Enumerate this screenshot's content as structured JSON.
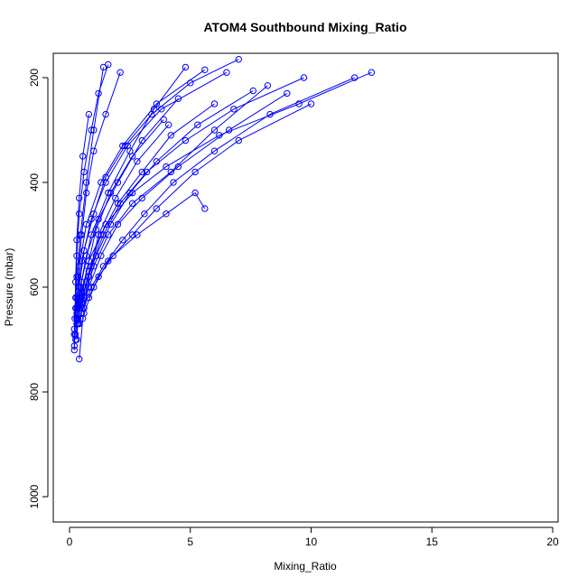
{
  "chart_data": {
    "type": "line",
    "title": "ATOM4 Southbound Mixing_Ratio",
    "xlabel": "Mixing_Ratio",
    "ylabel": "Pressure (mbar)",
    "xlim": [
      0,
      20
    ],
    "ylim": [
      1000,
      160
    ],
    "y_reversed": true,
    "grid": false,
    "legend": "none",
    "marker": "open-circle",
    "color": "#0000ff",
    "x_ticks": [
      0,
      5,
      10,
      15,
      20
    ],
    "y_ticks": [
      200,
      400,
      600,
      800,
      1000
    ],
    "x_tick_labels": [
      "0",
      "5",
      "10",
      "15",
      "20"
    ],
    "y_tick_labels": [
      "200",
      "400",
      "600",
      "800",
      "1000"
    ],
    "series": [
      {
        "x": [
          0.2,
          0.2,
          0.25,
          0.3,
          0.45,
          0.7,
          1.0,
          1.4
        ],
        "y": [
          712,
          690,
          640,
          580,
          500,
          400,
          300,
          180
        ]
      },
      {
        "x": [
          0.3,
          0.35,
          0.5,
          0.9,
          1.6,
          2.5,
          3.5,
          4.8
        ],
        "y": [
          700,
          660,
          590,
          500,
          420,
          340,
          260,
          180
        ]
      },
      {
        "x": [
          0.25,
          0.3,
          0.4,
          0.7,
          1.3,
          2.2,
          3.6,
          5.6
        ],
        "y": [
          690,
          640,
          560,
          480,
          400,
          330,
          250,
          185
        ]
      },
      {
        "x": [
          0.4,
          0.6,
          1.0,
          1.6,
          2.6,
          4.2,
          6.0,
          8.2
        ],
        "y": [
          670,
          620,
          560,
          500,
          440,
          380,
          300,
          215
        ]
      },
      {
        "x": [
          0.35,
          0.5,
          0.8,
          1.5,
          2.6,
          4.0,
          6.2,
          9.5,
          12.5
        ],
        "y": [
          670,
          610,
          550,
          480,
          420,
          370,
          310,
          250,
          190
        ]
      },
      {
        "x": [
          0.2,
          0.25,
          0.3,
          0.4,
          0.6,
          0.9,
          1.2,
          1.6
        ],
        "y": [
          690,
          620,
          540,
          460,
          380,
          300,
          230,
          175
        ]
      },
      {
        "x": [
          0.3,
          0.45,
          0.7,
          1.2,
          2.0,
          3.0,
          4.5
        ],
        "y": [
          660,
          600,
          540,
          470,
          400,
          320,
          240
        ]
      },
      {
        "x": [
          0.5,
          0.8,
          1.3,
          2.0,
          3.0,
          4.5,
          6.6,
          9.0
        ],
        "y": [
          650,
          600,
          540,
          480,
          430,
          370,
          300,
          230
        ]
      },
      {
        "x": [
          0.6,
          1.0,
          1.6,
          2.6,
          3.6,
          5.2,
          7.0,
          10.0
        ],
        "y": [
          650,
          600,
          550,
          500,
          450,
          380,
          320,
          250
        ]
      },
      {
        "x": [
          0.8,
          1.2,
          1.8,
          2.8,
          4.0,
          5.2,
          5.6
        ],
        "y": [
          620,
          580,
          540,
          500,
          460,
          420,
          450
        ]
      },
      {
        "x": [
          0.3,
          0.4,
          0.6,
          1.0,
          1.5,
          2.3,
          3.4,
          5.0,
          7.0
        ],
        "y": [
          660,
          600,
          530,
          460,
          390,
          330,
          270,
          210,
          165
        ]
      },
      {
        "x": [
          0.25,
          0.3,
          0.35,
          0.5,
          0.7,
          1.0,
          1.5,
          2.1
        ],
        "y": [
          700,
          650,
          580,
          500,
          420,
          340,
          270,
          190
        ]
      },
      {
        "x": [
          0.2,
          0.3,
          0.5,
          0.9,
          1.5,
          2.4,
          3.8,
          6.5
        ],
        "y": [
          680,
          620,
          550,
          470,
          400,
          330,
          260,
          190
        ]
      },
      {
        "x": [
          0.4,
          0.7,
          1.1,
          1.7,
          2.5,
          3.6,
          5.3,
          7.6
        ],
        "y": [
          640,
          590,
          540,
          480,
          420,
          360,
          290,
          225
        ]
      },
      {
        "x": [
          0.3,
          0.5,
          0.8,
          1.3,
          2.0,
          3.0,
          4.2,
          6.0
        ],
        "y": [
          670,
          630,
          570,
          500,
          440,
          380,
          310,
          250
        ]
      },
      {
        "x": [
          0.2,
          0.22,
          0.25,
          0.3,
          0.4,
          0.55,
          0.8
        ],
        "y": [
          720,
          660,
          590,
          510,
          430,
          350,
          270
        ]
      },
      {
        "x": [
          0.45,
          0.6,
          0.9,
          1.4,
          2.1,
          3.2,
          4.8,
          6.8,
          9.7
        ],
        "y": [
          660,
          610,
          560,
          500,
          440,
          380,
          320,
          260,
          200
        ]
      },
      {
        "x": [
          0.35,
          0.5,
          0.75,
          1.1,
          1.7,
          2.6,
          3.9
        ],
        "y": [
          670,
          620,
          560,
          490,
          420,
          350,
          280
        ]
      },
      {
        "x": [
          0.6,
          0.9,
          1.4,
          2.2,
          3.1,
          4.3,
          6.0,
          8.3,
          11.8
        ],
        "y": [
          640,
          600,
          560,
          510,
          460,
          400,
          340,
          270,
          200
        ]
      },
      {
        "x": [
          0.4,
          0.55,
          0.8,
          1.2,
          1.9,
          2.8,
          4.1
        ],
        "y": [
          737,
          660,
          580,
          500,
          430,
          360,
          290
        ]
      }
    ]
  }
}
